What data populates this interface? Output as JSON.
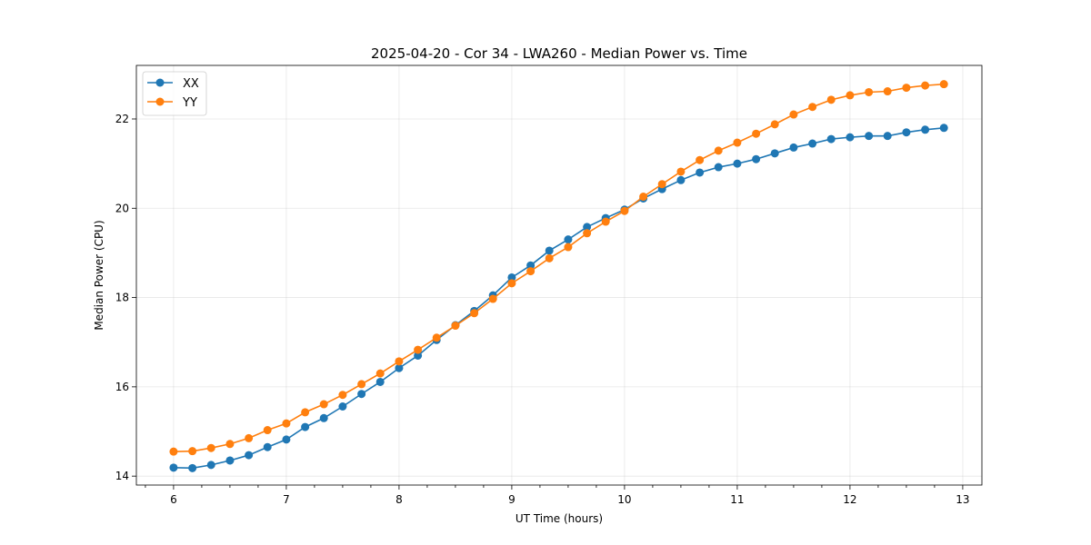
{
  "chart_data": {
    "type": "line",
    "title": "2025-04-20 - Cor 34 - LWA260 - Median Power vs. Time",
    "xlabel": "UT Time (hours)",
    "ylabel": "Median Power (CPU)",
    "xlim": [
      5.67,
      13.17
    ],
    "ylim": [
      13.8,
      23.2
    ],
    "xticks": [
      6,
      7,
      8,
      9,
      10,
      11,
      12,
      13
    ],
    "yticks": [
      14,
      16,
      18,
      20,
      22
    ],
    "x_minor_step": 0.25,
    "grid": true,
    "legend_position": "upper-left",
    "x": [
      6.0,
      6.167,
      6.333,
      6.5,
      6.667,
      6.833,
      7.0,
      7.167,
      7.333,
      7.5,
      7.667,
      7.833,
      8.0,
      8.167,
      8.333,
      8.5,
      8.667,
      8.833,
      9.0,
      9.167,
      9.333,
      9.5,
      9.667,
      9.833,
      10.0,
      10.167,
      10.333,
      10.5,
      10.667,
      10.833,
      11.0,
      11.167,
      11.333,
      11.5,
      11.667,
      11.833,
      12.0,
      12.167,
      12.333,
      12.5,
      12.667,
      12.833
    ],
    "series": [
      {
        "name": "XX",
        "color": "#1f77b4",
        "values": [
          14.19,
          14.18,
          14.25,
          14.35,
          14.47,
          14.65,
          14.82,
          15.1,
          15.3,
          15.56,
          15.84,
          16.11,
          16.42,
          16.7,
          17.05,
          17.38,
          17.7,
          18.05,
          18.45,
          18.72,
          19.05,
          19.3,
          19.58,
          19.78,
          19.97,
          20.22,
          20.43,
          20.63,
          20.8,
          20.92,
          21.0,
          21.1,
          21.23,
          21.36,
          21.45,
          21.55,
          21.59,
          21.62,
          21.62,
          21.7,
          21.76,
          21.8
        ]
      },
      {
        "name": "YY",
        "color": "#ff7f0e",
        "values": [
          14.55,
          14.56,
          14.63,
          14.72,
          14.85,
          15.03,
          15.18,
          15.43,
          15.61,
          15.82,
          16.06,
          16.3,
          16.57,
          16.83,
          17.1,
          17.37,
          17.65,
          17.97,
          18.32,
          18.59,
          18.88,
          19.13,
          19.44,
          19.7,
          19.94,
          20.26,
          20.54,
          20.82,
          21.08,
          21.29,
          21.47,
          21.67,
          21.88,
          22.1,
          22.27,
          22.43,
          22.53,
          22.6,
          22.62,
          22.7,
          22.75,
          22.78
        ]
      }
    ]
  }
}
